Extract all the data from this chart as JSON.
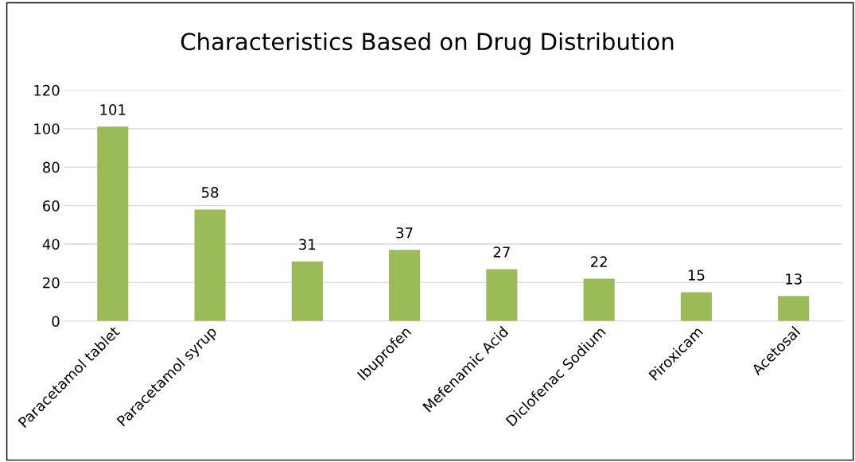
{
  "chart_data": {
    "type": "bar",
    "title": "Characteristics Based on Drug Distribution",
    "categories": [
      "Paracetamol tablet",
      "Paracetamol syrup",
      null,
      "Ibuprofen",
      "Mefenamic Acid",
      "Diclofenac Sodium",
      "Piroxicam",
      "Acetosal"
    ],
    "values": [
      101,
      58,
      31,
      37,
      27,
      22,
      15,
      13
    ],
    "color": "#9bbb59",
    "ylim": [
      0,
      120
    ],
    "yticks": [
      0,
      20,
      40,
      60,
      80,
      100,
      120
    ],
    "grid": "y",
    "data_labels": true
  }
}
